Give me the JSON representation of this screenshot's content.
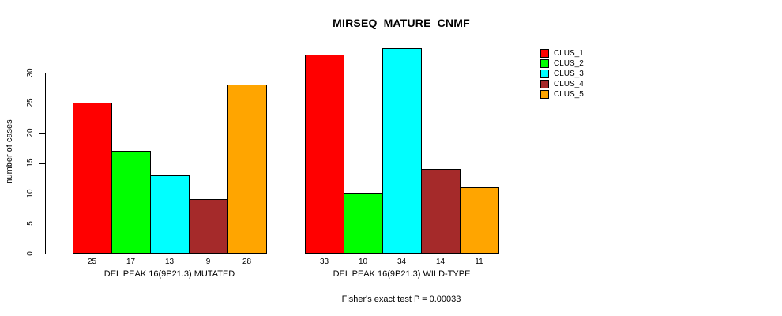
{
  "chart_data": {
    "type": "bar",
    "title": "MIRSEQ_MATURE_CNMF",
    "ylabel": "number of cases",
    "yticks": [
      0,
      5,
      10,
      15,
      20,
      25,
      30
    ],
    "ylim": [
      0,
      34
    ],
    "grid": false,
    "legend_position": "right",
    "series": [
      {
        "name": "CLUS_1",
        "color": "#ff0000"
      },
      {
        "name": "CLUS_2",
        "color": "#00ff00"
      },
      {
        "name": "CLUS_3",
        "color": "#00ffff"
      },
      {
        "name": "CLUS_4",
        "color": "#a52a2a"
      },
      {
        "name": "CLUS_5",
        "color": "#ffa500"
      }
    ],
    "groups": [
      {
        "label": "DEL PEAK 16(9P21.3) MUTATED",
        "values": [
          25,
          17,
          13,
          9,
          28
        ]
      },
      {
        "label": "DEL PEAK 16(9P21.3) WILD-TYPE",
        "values": [
          33,
          10,
          34,
          14,
          11
        ]
      }
    ],
    "bar_value_labels_shown": true,
    "footnote": "Fisher's exact test P = 0.00033"
  }
}
